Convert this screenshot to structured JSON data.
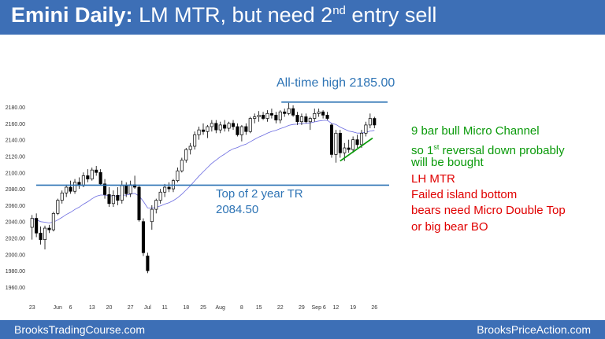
{
  "header": {
    "title_bold": "Emini Daily:",
    "title_rest": "LM MTR, but need 2",
    "title_sup": "nd",
    "title_end": "entry sell"
  },
  "footer": {
    "left": "BrooksTradingCourse.com",
    "right": "BrooksPriceAction.com"
  },
  "colors": {
    "header_bg": "#3d6fb6",
    "annotation_blue": "#2e74b5",
    "annotation_green": "#0a9a0a",
    "annotation_red": "#e00000",
    "ema": "#6a6ae0"
  },
  "annotations": {
    "all_time_high": "All-time high 2185.00",
    "tr_top_line1": "Top of 2 year TR",
    "tr_top_line2": "2084.50",
    "green_1": "9 bar bull Micro Channel",
    "green_2a": "so 1",
    "green_2sup": "st",
    "green_2b": " reversal down probably",
    "green_3": "will be bought",
    "red_1": "LH MTR",
    "red_2": "Failed island bottom",
    "red_3": "bears need Micro Double Top",
    "red_4": "or big bear BO"
  },
  "chart_data": {
    "type": "candlestick",
    "ylim": [
      1950,
      2190
    ],
    "yticks": [
      "1960.00",
      "1980.00",
      "2000.00",
      "2020.00",
      "2040.00",
      "2060.00",
      "2080.00",
      "2100.00",
      "2120.00",
      "2140.00",
      "2160.00",
      "2180.00"
    ],
    "xticks": [
      "23",
      "Jun",
      "6",
      "13",
      "20",
      "27",
      "Jul",
      "11",
      "18",
      "25",
      "Aug",
      "8",
      "15",
      "22",
      "29",
      "Sep 6",
      "12",
      "19",
      "26"
    ],
    "hlines": [
      2185.0,
      2084.5
    ],
    "candles": [
      {
        "o": 2033,
        "h": 2048,
        "l": 2018,
        "c": 2044
      },
      {
        "o": 2044,
        "h": 2050,
        "l": 2021,
        "c": 2026
      },
      {
        "o": 2026,
        "h": 2034,
        "l": 2012,
        "c": 2018
      },
      {
        "o": 2018,
        "h": 2035,
        "l": 2006,
        "c": 2032
      },
      {
        "o": 2032,
        "h": 2036,
        "l": 2026,
        "c": 2030
      },
      {
        "o": 2030,
        "h": 2052,
        "l": 2028,
        "c": 2050
      },
      {
        "o": 2050,
        "h": 2068,
        "l": 2048,
        "c": 2066
      },
      {
        "o": 2066,
        "h": 2078,
        "l": 2062,
        "c": 2075
      },
      {
        "o": 2075,
        "h": 2085,
        "l": 2070,
        "c": 2082
      },
      {
        "o": 2082,
        "h": 2090,
        "l": 2074,
        "c": 2077
      },
      {
        "o": 2077,
        "h": 2092,
        "l": 2074,
        "c": 2088
      },
      {
        "o": 2088,
        "h": 2094,
        "l": 2080,
        "c": 2084
      },
      {
        "o": 2084,
        "h": 2100,
        "l": 2082,
        "c": 2096
      },
      {
        "o": 2096,
        "h": 2104,
        "l": 2088,
        "c": 2092
      },
      {
        "o": 2092,
        "h": 2106,
        "l": 2090,
        "c": 2103
      },
      {
        "o": 2103,
        "h": 2108,
        "l": 2096,
        "c": 2100
      },
      {
        "o": 2100,
        "h": 2104,
        "l": 2084,
        "c": 2086
      },
      {
        "o": 2086,
        "h": 2092,
        "l": 2068,
        "c": 2073
      },
      {
        "o": 2073,
        "h": 2082,
        "l": 2058,
        "c": 2062
      },
      {
        "o": 2062,
        "h": 2078,
        "l": 2058,
        "c": 2072
      },
      {
        "o": 2072,
        "h": 2082,
        "l": 2060,
        "c": 2066
      },
      {
        "o": 2066,
        "h": 2090,
        "l": 2062,
        "c": 2084
      },
      {
        "o": 2084,
        "h": 2088,
        "l": 2070,
        "c": 2074
      },
      {
        "o": 2074,
        "h": 2090,
        "l": 2070,
        "c": 2085
      },
      {
        "o": 2085,
        "h": 2096,
        "l": 2080,
        "c": 2082
      },
      {
        "o": 2082,
        "h": 2085,
        "l": 2040,
        "c": 2042
      },
      {
        "o": 2040,
        "h": 2044,
        "l": 1998,
        "c": 2002
      },
      {
        "o": 1998,
        "h": 2002,
        "l": 1977,
        "c": 1980
      },
      {
        "o": 2040,
        "h": 2060,
        "l": 2030,
        "c": 2055
      },
      {
        "o": 2055,
        "h": 2068,
        "l": 2050,
        "c": 2066
      },
      {
        "o": 2066,
        "h": 2080,
        "l": 2062,
        "c": 2076
      },
      {
        "o": 2076,
        "h": 2086,
        "l": 2070,
        "c": 2082
      },
      {
        "o": 2082,
        "h": 2088,
        "l": 2076,
        "c": 2080
      },
      {
        "o": 2080,
        "h": 2092,
        "l": 2076,
        "c": 2090
      },
      {
        "o": 2090,
        "h": 2106,
        "l": 2088,
        "c": 2102
      },
      {
        "o": 2102,
        "h": 2118,
        "l": 2100,
        "c": 2115
      },
      {
        "o": 2115,
        "h": 2130,
        "l": 2112,
        "c": 2128
      },
      {
        "o": 2128,
        "h": 2136,
        "l": 2122,
        "c": 2132
      },
      {
        "o": 2132,
        "h": 2150,
        "l": 2128,
        "c": 2146
      },
      {
        "o": 2146,
        "h": 2156,
        "l": 2140,
        "c": 2152
      },
      {
        "o": 2152,
        "h": 2160,
        "l": 2146,
        "c": 2150
      },
      {
        "o": 2150,
        "h": 2158,
        "l": 2142,
        "c": 2156
      },
      {
        "o": 2156,
        "h": 2164,
        "l": 2150,
        "c": 2160
      },
      {
        "o": 2160,
        "h": 2164,
        "l": 2148,
        "c": 2152
      },
      {
        "o": 2152,
        "h": 2162,
        "l": 2148,
        "c": 2158
      },
      {
        "o": 2158,
        "h": 2164,
        "l": 2150,
        "c": 2154
      },
      {
        "o": 2154,
        "h": 2162,
        "l": 2150,
        "c": 2160
      },
      {
        "o": 2160,
        "h": 2164,
        "l": 2152,
        "c": 2156
      },
      {
        "o": 2156,
        "h": 2160,
        "l": 2144,
        "c": 2146
      },
      {
        "o": 2146,
        "h": 2158,
        "l": 2138,
        "c": 2156
      },
      {
        "o": 2156,
        "h": 2160,
        "l": 2146,
        "c": 2150
      },
      {
        "o": 2150,
        "h": 2168,
        "l": 2148,
        "c": 2166
      },
      {
        "o": 2166,
        "h": 2172,
        "l": 2160,
        "c": 2168
      },
      {
        "o": 2168,
        "h": 2175,
        "l": 2162,
        "c": 2170
      },
      {
        "o": 2170,
        "h": 2174,
        "l": 2164,
        "c": 2166
      },
      {
        "o": 2166,
        "h": 2176,
        "l": 2162,
        "c": 2172
      },
      {
        "o": 2172,
        "h": 2178,
        "l": 2166,
        "c": 2170
      },
      {
        "o": 2170,
        "h": 2174,
        "l": 2160,
        "c": 2164
      },
      {
        "o": 2164,
        "h": 2176,
        "l": 2160,
        "c": 2174
      },
      {
        "o": 2174,
        "h": 2178,
        "l": 2168,
        "c": 2172
      },
      {
        "o": 2172,
        "h": 2185,
        "l": 2170,
        "c": 2178
      },
      {
        "o": 2178,
        "h": 2182,
        "l": 2168,
        "c": 2170
      },
      {
        "o": 2170,
        "h": 2174,
        "l": 2158,
        "c": 2162
      },
      {
        "o": 2162,
        "h": 2172,
        "l": 2158,
        "c": 2168
      },
      {
        "o": 2168,
        "h": 2172,
        "l": 2160,
        "c": 2162
      },
      {
        "o": 2162,
        "h": 2168,
        "l": 2152,
        "c": 2166
      },
      {
        "o": 2166,
        "h": 2178,
        "l": 2162,
        "c": 2172
      },
      {
        "o": 2172,
        "h": 2178,
        "l": 2168,
        "c": 2174
      },
      {
        "o": 2174,
        "h": 2176,
        "l": 2166,
        "c": 2170
      },
      {
        "o": 2170,
        "h": 2174,
        "l": 2164,
        "c": 2166
      },
      {
        "o": 2158,
        "h": 2160,
        "l": 2118,
        "c": 2122
      },
      {
        "o": 2122,
        "h": 2152,
        "l": 2112,
        "c": 2148
      },
      {
        "o": 2148,
        "h": 2152,
        "l": 2118,
        "c": 2124
      },
      {
        "o": 2124,
        "h": 2136,
        "l": 2114,
        "c": 2130
      },
      {
        "o": 2130,
        "h": 2140,
        "l": 2124,
        "c": 2128
      },
      {
        "o": 2128,
        "h": 2144,
        "l": 2124,
        "c": 2140
      },
      {
        "o": 2140,
        "h": 2146,
        "l": 2130,
        "c": 2134
      },
      {
        "o": 2134,
        "h": 2152,
        "l": 2130,
        "c": 2148
      },
      {
        "o": 2148,
        "h": 2162,
        "l": 2144,
        "c": 2158
      },
      {
        "o": 2158,
        "h": 2172,
        "l": 2154,
        "c": 2166
      },
      {
        "o": 2166,
        "h": 2168,
        "l": 2154,
        "c": 2158
      }
    ]
  }
}
